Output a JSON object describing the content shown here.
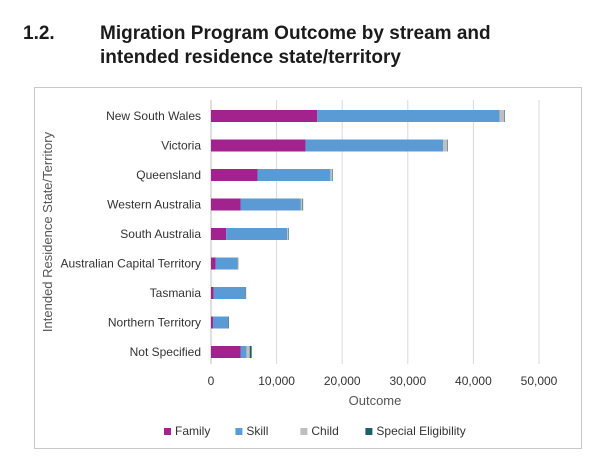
{
  "heading": {
    "number": "1.2.",
    "title": "Migration Program Outcome by stream and intended residence state/territory"
  },
  "chart_data": {
    "type": "bar",
    "orientation": "horizontal",
    "stacked": true,
    "categories": [
      "New South Wales",
      "Victoria",
      "Queensland",
      "Western Australia",
      "South Australia",
      "Australian Capital Territory",
      "Tasmania",
      "Northern Territory",
      "Not Specified"
    ],
    "series": [
      {
        "name": "Family",
        "color": "#a3238e",
        "values": [
          16200,
          14400,
          7100,
          4500,
          2300,
          700,
          400,
          300,
          4500
        ]
      },
      {
        "name": "Skill",
        "color": "#5b9bd5",
        "values": [
          27800,
          21000,
          11100,
          9200,
          9300,
          3300,
          4800,
          2300,
          900
        ]
      },
      {
        "name": "Child",
        "color": "#bfbfbf",
        "values": [
          700,
          600,
          250,
          250,
          150,
          60,
          60,
          40,
          500
        ]
      },
      {
        "name": "Special Eligibility",
        "color": "#1f5f66",
        "values": [
          30,
          20,
          10,
          10,
          10,
          5,
          5,
          5,
          300
        ]
      }
    ],
    "xlabel": "Outcome",
    "ylabel": "Intended Residence State/Territory",
    "xlim": [
      0,
      50000
    ],
    "xticks": [
      0,
      10000,
      20000,
      30000,
      40000,
      50000
    ],
    "xtick_labels": [
      "0",
      "10,000",
      "20,000",
      "30,000",
      "40,000",
      "50,000"
    ],
    "grid": "vertical",
    "legend_position": "bottom"
  }
}
